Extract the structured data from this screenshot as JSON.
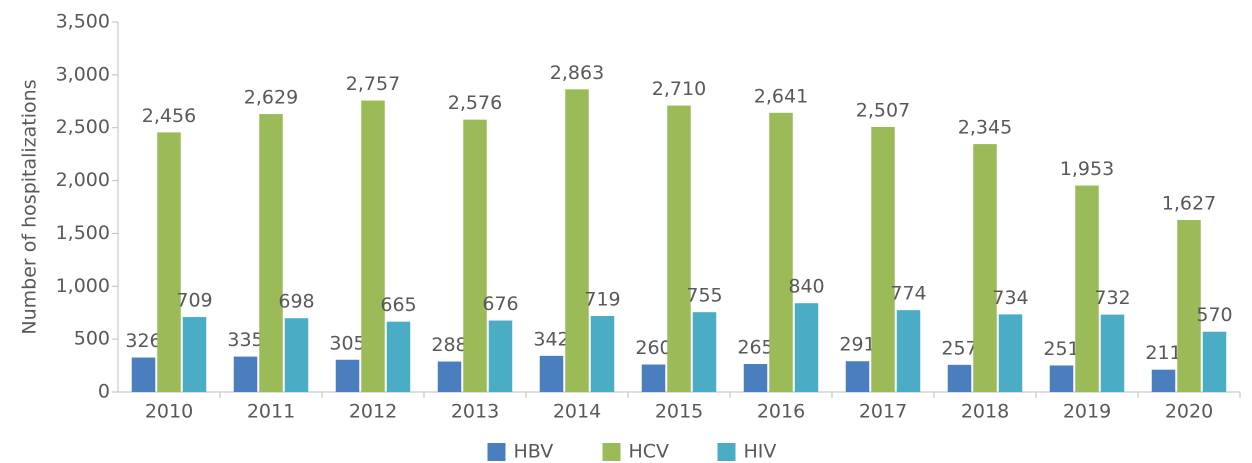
{
  "chart_data": {
    "type": "bar",
    "y_label": "Number of hospitalizations",
    "categories": [
      "2010",
      "2011",
      "2012",
      "2013",
      "2014",
      "2015",
      "2016",
      "2017",
      "2018",
      "2019",
      "2020"
    ],
    "series": [
      {
        "name": "HBV",
        "color": "#4a7ebf",
        "values": [
          326,
          335,
          305,
          288,
          342,
          260,
          265,
          291,
          257,
          251,
          211
        ]
      },
      {
        "name": "HCV",
        "color": "#9bbb59",
        "values": [
          2456,
          2629,
          2757,
          2576,
          2863,
          2710,
          2641,
          2507,
          2345,
          1953,
          1627
        ],
        "value_labels": [
          "2,456",
          "2,629",
          "2,757",
          "2,576",
          "2,863",
          "2,710",
          "2,641",
          "2,507",
          "2,345",
          "1,953",
          "1,627"
        ]
      },
      {
        "name": "HIV",
        "color": "#4bacc6",
        "values": [
          709,
          698,
          665,
          676,
          719,
          755,
          840,
          774,
          734,
          732,
          570
        ]
      }
    ],
    "ylim": [
      0,
      3500
    ],
    "yticks": [
      0,
      500,
      {
        "value": 1000,
        "label": "1,000"
      },
      {
        "value": 1500,
        "label": "1,500"
      },
      {
        "value": 2000,
        "label": "2,000"
      },
      {
        "value": 2500,
        "label": "2,500"
      },
      {
        "value": 3000,
        "label": "3,000"
      },
      {
        "value": 3500,
        "label": "3,500"
      }
    ],
    "grid": false,
    "legend": "bottom"
  }
}
